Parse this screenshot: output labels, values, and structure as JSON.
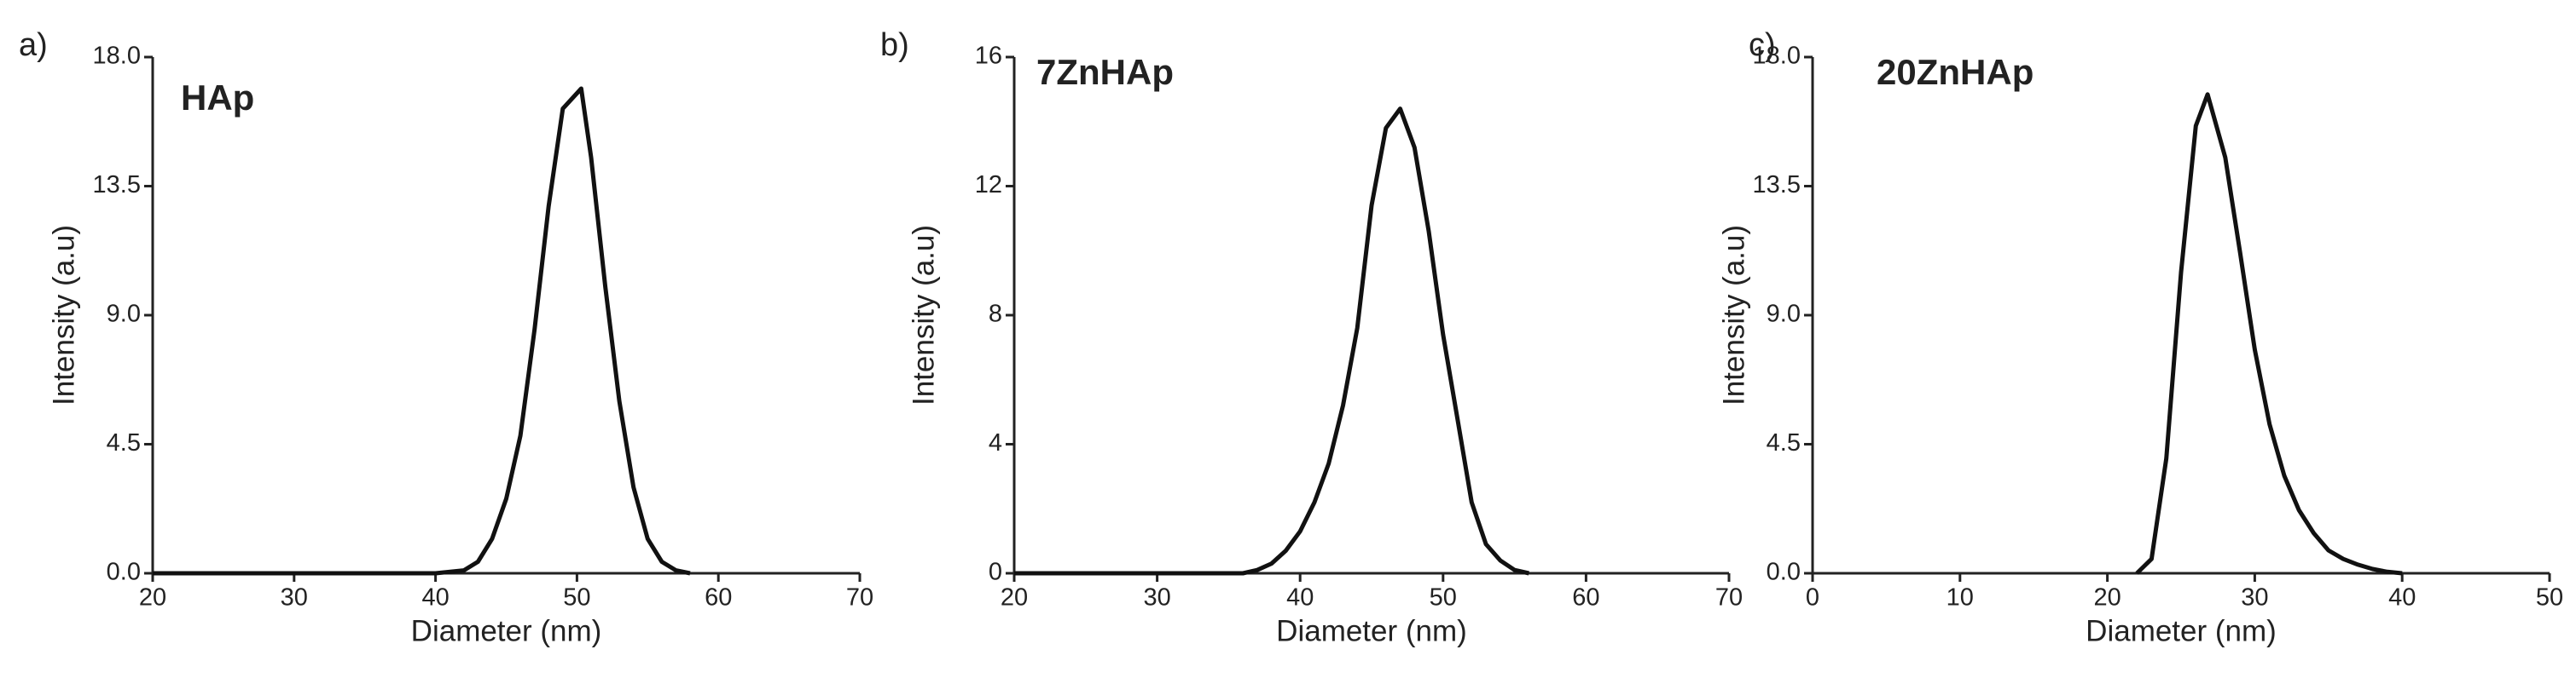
{
  "chart_data": [
    {
      "type": "line",
      "panel_label": "a)",
      "annotation": "HAp",
      "x_label": "Diameter (nm)",
      "y_label": "Intensity (a.u)",
      "color": "#111111",
      "x": [
        20,
        30,
        40,
        42,
        43,
        44,
        45,
        46,
        47,
        48,
        49,
        50.3,
        51,
        52,
        53,
        54,
        55,
        56,
        57,
        58
      ],
      "values": [
        0,
        0,
        0,
        0.1,
        0.4,
        1.2,
        2.6,
        4.8,
        8.5,
        12.8,
        16.2,
        16.9,
        14.5,
        10,
        6,
        3,
        1.2,
        0.4,
        0.1,
        0
      ],
      "xlim": [
        20,
        70
      ],
      "xticks": [
        20,
        30,
        40,
        50,
        60,
        70
      ],
      "ylim": [
        0,
        18
      ],
      "yticks": [
        {
          "value": 0,
          "label": "0.0"
        },
        4.5,
        {
          "value": 9,
          "label": "9.0"
        },
        13.5,
        {
          "value": 18,
          "label": "18.0"
        }
      ]
    },
    {
      "type": "line",
      "panel_label": "b)",
      "annotation": "7ZnHAp",
      "x_label": "Diameter (nm)",
      "y_label": "Intensity (a.u)",
      "color": "#111111",
      "x": [
        20,
        30,
        36,
        37,
        38,
        39,
        40,
        41,
        42,
        43,
        44,
        45,
        46,
        47,
        48,
        49,
        50,
        51,
        52,
        53,
        54,
        55,
        56
      ],
      "values": [
        0,
        0,
        0,
        0.1,
        0.3,
        0.7,
        1.3,
        2.2,
        3.4,
        5.2,
        7.6,
        11.4,
        13.8,
        14.4,
        13.2,
        10.6,
        7.4,
        4.8,
        2.2,
        0.9,
        0.4,
        0.1,
        0
      ],
      "xlim": [
        20,
        70
      ],
      "xticks": [
        20,
        30,
        40,
        50,
        60,
        70
      ],
      "ylim": [
        0,
        16
      ],
      "yticks": [
        0,
        4,
        8,
        12,
        16
      ]
    },
    {
      "type": "line",
      "panel_label": "c)",
      "annotation": "20ZnHAp",
      "x_label": "Diameter (nm)",
      "y_label": "Intensity (a.u)",
      "color": "#111111",
      "x": [
        22,
        23,
        24,
        25,
        26,
        26.8,
        28,
        29,
        30,
        31,
        32,
        33,
        34,
        35,
        36,
        37,
        38,
        39,
        40
      ],
      "values": [
        0,
        0.5,
        4,
        10.5,
        15.6,
        16.7,
        14.5,
        11.2,
        7.8,
        5.2,
        3.4,
        2.2,
        1.4,
        0.8,
        0.5,
        0.3,
        0.15,
        0.05,
        0
      ],
      "xlim": [
        0,
        50
      ],
      "xticks": [
        0,
        10,
        20,
        30,
        40,
        50
      ],
      "ylim": [
        0,
        18
      ],
      "yticks": [
        {
          "value": 0,
          "label": "0.0"
        },
        4.5,
        {
          "value": 9,
          "label": "9.0"
        },
        13.5,
        {
          "value": 18,
          "label": "18.0"
        }
      ]
    }
  ]
}
